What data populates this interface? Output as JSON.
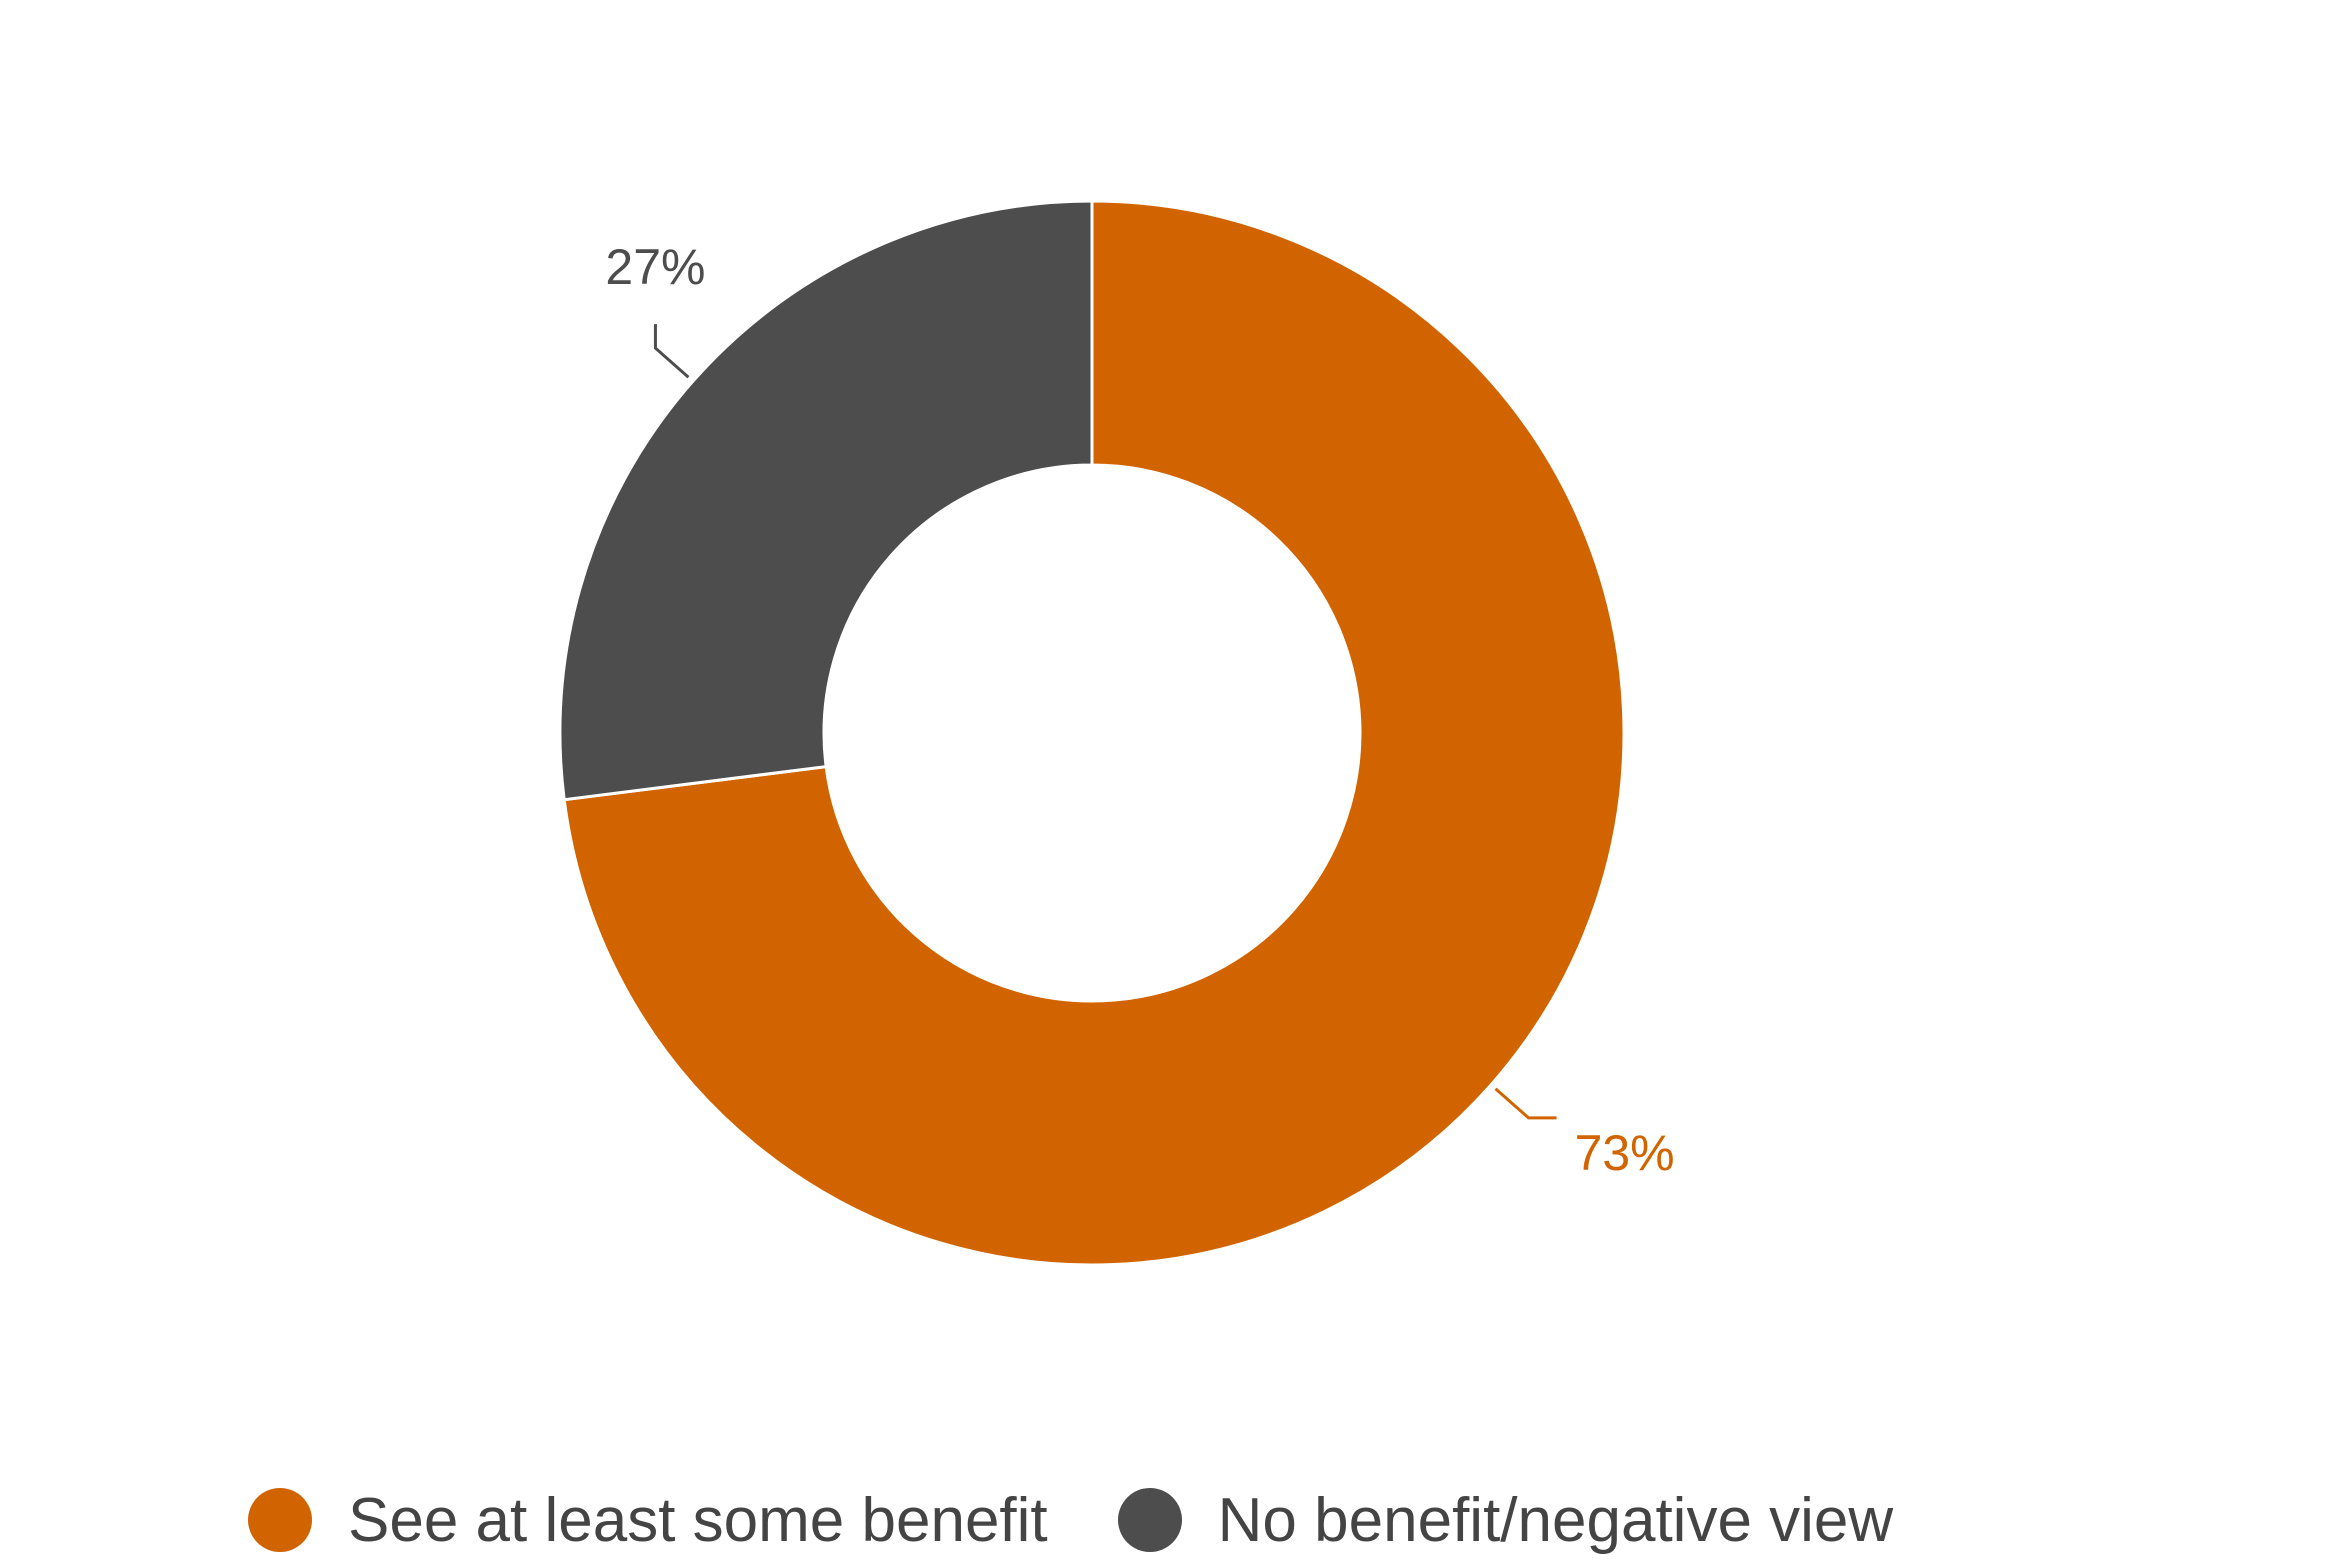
{
  "chart_data": {
    "type": "pie",
    "style": "donut",
    "title": "",
    "categories": [
      "See at least some benefit",
      "No benefit/negative view"
    ],
    "values": [
      73,
      27
    ],
    "value_labels": [
      "73%",
      "27%"
    ],
    "colors": [
      "#D26400",
      "#4D4D4D"
    ],
    "legend_placement": "bottom"
  }
}
